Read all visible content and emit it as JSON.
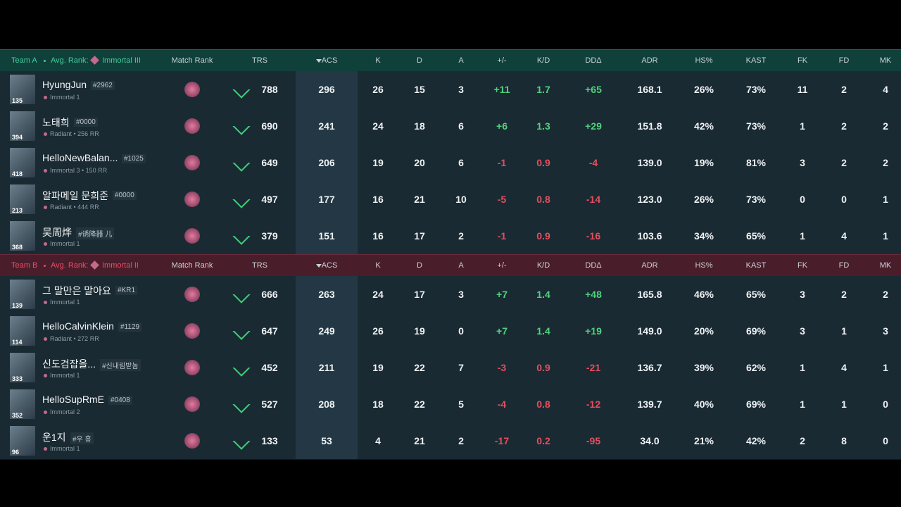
{
  "columns": [
    "Match Rank",
    "TRS",
    "ACS",
    "K",
    "D",
    "A",
    "+/-",
    "K/D",
    "DDΔ",
    "ADR",
    "HS%",
    "KAST",
    "FK",
    "FD",
    "MK"
  ],
  "teams": [
    {
      "label": "Team A",
      "avg_rank_label": "Avg. Rank:",
      "avg_rank": "Immortal III",
      "players": [
        {
          "level": "135",
          "name": "HyungJun",
          "tag": "#2962",
          "rank": "Immortal 1",
          "stats": [
            "788",
            "296",
            "26",
            "15",
            "3",
            "+11",
            "1.7",
            "+65",
            "168.1",
            "26%",
            "73%",
            "11",
            "2",
            "4"
          ]
        },
        {
          "level": "394",
          "name": "노태희",
          "tag": "#0000",
          "rank": "Radiant • 256 RR",
          "stats": [
            "690",
            "241",
            "24",
            "18",
            "6",
            "+6",
            "1.3",
            "+29",
            "151.8",
            "42%",
            "73%",
            "1",
            "2",
            "2"
          ]
        },
        {
          "level": "418",
          "name": "HelloNewBalan...",
          "tag": "#1025",
          "rank": "Immortal 3 • 150 RR",
          "stats": [
            "649",
            "206",
            "19",
            "20",
            "6",
            "-1",
            "0.9",
            "-4",
            "139.0",
            "19%",
            "81%",
            "3",
            "2",
            "2"
          ]
        },
        {
          "level": "213",
          "name": "알파메일 문희준",
          "tag": "#0000",
          "rank": "Radiant • 444 RR",
          "stats": [
            "497",
            "177",
            "16",
            "21",
            "10",
            "-5",
            "0.8",
            "-14",
            "123.0",
            "26%",
            "73%",
            "0",
            "0",
            "1"
          ]
        },
        {
          "level": "368",
          "name": "吴周烨",
          "tag": "#诱降器 儿",
          "rank": "Immortal 1",
          "stats": [
            "379",
            "151",
            "16",
            "17",
            "2",
            "-1",
            "0.9",
            "-16",
            "103.6",
            "34%",
            "65%",
            "1",
            "4",
            "1"
          ]
        }
      ]
    },
    {
      "label": "Team B",
      "avg_rank_label": "Avg. Rank:",
      "avg_rank": "Immortal II",
      "players": [
        {
          "level": "139",
          "name": "그 말만은 말아요",
          "tag": "#KR1",
          "rank": "Immortal 1",
          "stats": [
            "666",
            "263",
            "24",
            "17",
            "3",
            "+7",
            "1.4",
            "+48",
            "165.8",
            "46%",
            "65%",
            "3",
            "2",
            "2"
          ]
        },
        {
          "level": "114",
          "name": "HelloCalvinKlein",
          "tag": "#1129",
          "rank": "Radiant • 272 RR",
          "stats": [
            "647",
            "249",
            "26",
            "19",
            "0",
            "+7",
            "1.4",
            "+19",
            "149.0",
            "20%",
            "69%",
            "3",
            "1",
            "3"
          ]
        },
        {
          "level": "333",
          "name": "신도검잡을...",
          "tag": "#신내림받놈",
          "rank": "Immortal 1",
          "stats": [
            "452",
            "211",
            "19",
            "22",
            "7",
            "-3",
            "0.9",
            "-21",
            "136.7",
            "39%",
            "62%",
            "1",
            "4",
            "1"
          ]
        },
        {
          "level": "352",
          "name": "HelloSupRmE",
          "tag": "#0408",
          "rank": "Immortal 2",
          "stats": [
            "527",
            "208",
            "18",
            "22",
            "5",
            "-4",
            "0.8",
            "-12",
            "139.7",
            "40%",
            "69%",
            "1",
            "1",
            "0"
          ]
        },
        {
          "level": "96",
          "name": "운1지",
          "tag": "#우 흥",
          "rank": "Immortal 1",
          "stats": [
            "133",
            "53",
            "4",
            "21",
            "2",
            "-17",
            "0.2",
            "-95",
            "34.0",
            "21%",
            "42%",
            "2",
            "8",
            "0"
          ]
        }
      ]
    }
  ]
}
